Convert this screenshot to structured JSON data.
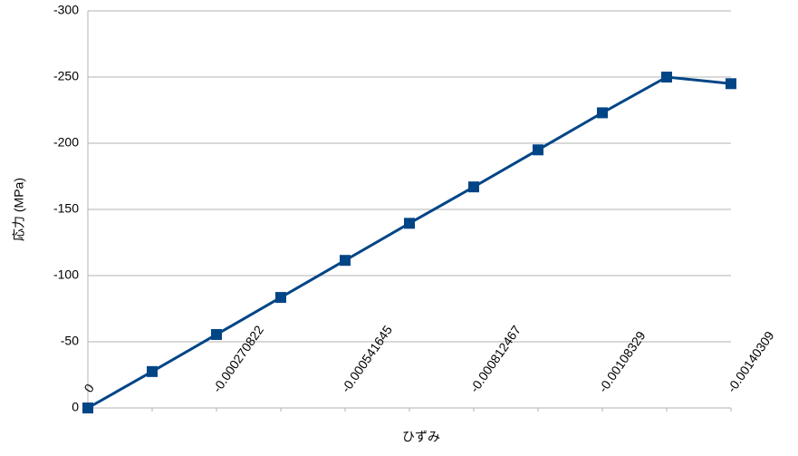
{
  "chart_data": {
    "type": "line",
    "x_label": "ひずみ",
    "y_label": "応力 (MPa)",
    "categories": [
      "0",
      null,
      "-0.000270822",
      null,
      "-0.000541645",
      null,
      "-0.000812467",
      null,
      "-0.00108329",
      null,
      "-0.00140309"
    ],
    "series": [
      {
        "name": "応力",
        "color": "#004586",
        "values": [
          0,
          -27.5,
          -55.5,
          -83.5,
          -111.5,
          -139.5,
          -167,
          -195,
          -223,
          -250,
          -245
        ]
      }
    ],
    "ylim": [
      0,
      -300
    ],
    "yticks": [
      0,
      -50,
      -100,
      -150,
      -200,
      -250,
      -300
    ],
    "grid": true
  }
}
